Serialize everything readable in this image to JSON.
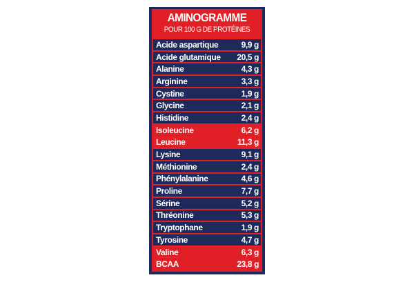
{
  "title": "AMINOGRAMME",
  "subtitle": "POUR 100 G DE PROTÉINES",
  "colors": {
    "navy": "#1f2a5c",
    "red": "#e01f26"
  },
  "rows": [
    {
      "name": "Acide aspartique",
      "value": "9,9 g",
      "highlight": false
    },
    {
      "name": "Acide glutamique",
      "value": "20,5 g",
      "highlight": false
    },
    {
      "name": "Alanine",
      "value": "4,3 g",
      "highlight": false
    },
    {
      "name": "Arginine",
      "value": "3,3 g",
      "highlight": false
    },
    {
      "name": "Cystine",
      "value": "1,9 g",
      "highlight": false
    },
    {
      "name": "Glycine",
      "value": "2,1 g",
      "highlight": false
    },
    {
      "name": "Histidine",
      "value": "2,4 g",
      "highlight": false
    },
    {
      "name": "Isoleucine",
      "value": "6,2 g",
      "highlight": true
    },
    {
      "name": "Leucine",
      "value": "11,3 g",
      "highlight": true
    },
    {
      "name": "Lysine",
      "value": "9,1 g",
      "highlight": false
    },
    {
      "name": "Méthionine",
      "value": "2,4 g",
      "highlight": false
    },
    {
      "name": "Phénylalanine",
      "value": "4,6 g",
      "highlight": false
    },
    {
      "name": "Proline",
      "value": "7,7 g",
      "highlight": false
    },
    {
      "name": "Sérine",
      "value": "5,2 g",
      "highlight": false
    },
    {
      "name": "Thréonine",
      "value": "5,3 g",
      "highlight": false
    },
    {
      "name": "Tryptophane",
      "value": "1,9 g",
      "highlight": false
    },
    {
      "name": "Tyrosine",
      "value": "4,7 g",
      "highlight": false
    },
    {
      "name": "Valine",
      "value": "6,3 g",
      "highlight": true
    },
    {
      "name": "BCAA",
      "value": "23,8 g",
      "highlight": true
    }
  ]
}
